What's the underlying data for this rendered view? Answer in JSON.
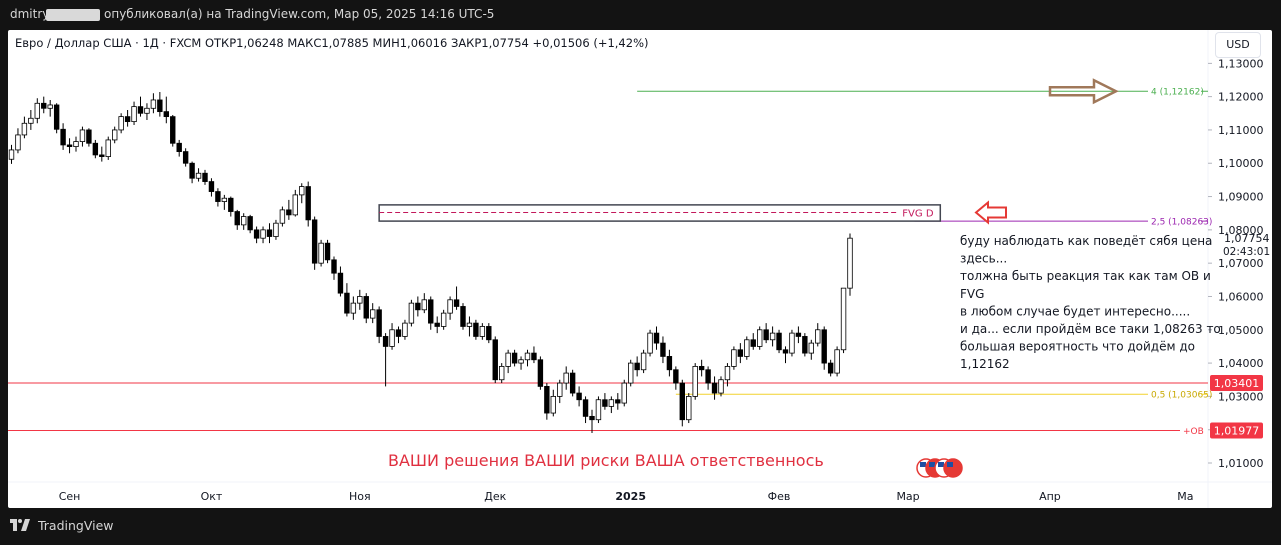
{
  "header": {
    "author": "dmitry",
    "published": "опубликовал(а) на TradingView.com, Мар 05, 2025 14:16 UTC-5"
  },
  "legend": {
    "text": "Евро / Доллар США · 1Д · FXCM   ОТКР1,06248   МАКС1,07885   МИН1,06016   ЗАКР1,07754   +0,01506 (+1,42%)"
  },
  "currency_button": "USD",
  "footer": {
    "brand": "TradingView"
  },
  "colors": {
    "up": "#ffffff",
    "down": "#000000",
    "candle_border": "#000000",
    "level_red": "#f23645",
    "level_green": "#4caf50",
    "level_purple": "#9c27b0",
    "fib_yellow": "#f2d22e",
    "arrow_brown": "#a0785a",
    "warning_text": "#e03040"
  },
  "chart_data": {
    "type": "candlestick",
    "symbol": "EURUSD",
    "timeframe": "1Д",
    "ylim": [
      1.0055,
      1.1325
    ],
    "y_ticks": [
      "1,13000",
      "1,12000",
      "1,11000",
      "1,10000",
      "1,09000",
      "1,08000",
      "1,07000",
      "1,06000",
      "1,05000",
      "1,04000",
      "1,03000",
      "1,02000",
      "1,01000"
    ],
    "x_ticks": [
      {
        "label": "Сен",
        "bar": 9
      },
      {
        "label": "Окт",
        "bar": 31
      },
      {
        "label": "Ноя",
        "bar": 54
      },
      {
        "label": "Дек",
        "bar": 75
      },
      {
        "label": "2025",
        "bar": 96
      },
      {
        "label": "Фев",
        "bar": 119
      },
      {
        "label": "Мар",
        "bar": 139
      },
      {
        "label": "Апр",
        "bar": 161
      },
      {
        "label": "Ма",
        "bar": 182
      }
    ],
    "price_labels": [
      {
        "text": "1,07754",
        "value": 1.07754
      },
      {
        "text": "02:43:01",
        "value": 1.07754
      }
    ],
    "levels": [
      {
        "name": "4 (1,12162)",
        "value": 1.12162,
        "color": "#4caf50",
        "from_bar": 97,
        "label": "4 (1,12162)"
      },
      {
        "name": "2,5 (1,08263)",
        "value": 1.08263,
        "color": "#9c27b0",
        "from_bar": 140,
        "label": "2,5 (1,08263)"
      },
      {
        "name": "0,5 (1,03065)",
        "value": 1.03065,
        "color": "#f2d22e",
        "from_bar": 103,
        "label": "0,5 (1,03065)"
      },
      {
        "name": "1,03401",
        "value": 1.03401,
        "color": "#f23645",
        "from_bar": 0,
        "tag": "1,03401"
      },
      {
        "name": "+OB",
        "value": 1.01977,
        "color": "#f23645",
        "from_bar": 0,
        "label": "+OB",
        "tag": "1,01977"
      }
    ],
    "fvg_box": {
      "from_bar": 57,
      "to_bar": 144,
      "top": 1.0875,
      "bottom": 1.08263,
      "mid": 1.0852,
      "label": "FVG D"
    },
    "annotations": [
      "буду наблюдать как поведёт сябя цена",
      "здесь...",
      "толжна быть реакция так как там ОВ и",
      "FVG",
      "в любом случае будет интересно.....",
      "и да... если пройдём все таки 1,08263 то",
      "большая вероятность что   дойдём до",
      "1,12162"
    ],
    "warning": "ВАШИ решения ВАШИ риски ВАША ответственнось",
    "candles": [
      [
        1.1012,
        1.1055,
        1.0998,
        1.104
      ],
      [
        1.104,
        1.1105,
        1.103,
        1.1085
      ],
      [
        1.1085,
        1.114,
        1.1075,
        1.112
      ],
      [
        1.112,
        1.116,
        1.11,
        1.1135
      ],
      [
        1.1135,
        1.1195,
        1.112,
        1.118
      ],
      [
        1.118,
        1.12,
        1.115,
        1.1165
      ],
      [
        1.1165,
        1.119,
        1.114,
        1.1175
      ],
      [
        1.1175,
        1.118,
        1.109,
        1.1102
      ],
      [
        1.1102,
        1.112,
        1.104,
        1.1055
      ],
      [
        1.1055,
        1.1075,
        1.103,
        1.105
      ],
      [
        1.105,
        1.108,
        1.1035,
        1.1065
      ],
      [
        1.1065,
        1.111,
        1.105,
        1.11
      ],
      [
        1.11,
        1.1105,
        1.105,
        1.106
      ],
      [
        1.106,
        1.107,
        1.1015,
        1.1025
      ],
      [
        1.1025,
        1.105,
        1.1005,
        1.102
      ],
      [
        1.102,
        1.108,
        1.101,
        1.107
      ],
      [
        1.107,
        1.111,
        1.106,
        1.11
      ],
      [
        1.11,
        1.115,
        1.109,
        1.114
      ],
      [
        1.114,
        1.116,
        1.111,
        1.1125
      ],
      [
        1.1125,
        1.1185,
        1.1115,
        1.117
      ],
      [
        1.117,
        1.12,
        1.114,
        1.115
      ],
      [
        1.115,
        1.118,
        1.113,
        1.1165
      ],
      [
        1.1165,
        1.121,
        1.115,
        1.119
      ],
      [
        1.119,
        1.1214,
        1.114,
        1.1155
      ],
      [
        1.1155,
        1.12,
        1.112,
        1.114
      ],
      [
        1.114,
        1.1145,
        1.105,
        1.106
      ],
      [
        1.106,
        1.107,
        1.102,
        1.1035
      ],
      [
        1.1035,
        1.1045,
        1.099,
        1.1
      ],
      [
        1.1,
        1.1005,
        1.094,
        1.0955
      ],
      [
        1.0955,
        1.0985,
        1.0945,
        1.097
      ],
      [
        1.097,
        1.098,
        1.0935,
        1.0945
      ],
      [
        1.0945,
        1.0955,
        1.09,
        1.0915
      ],
      [
        1.0915,
        1.0925,
        1.087,
        1.0885
      ],
      [
        1.0885,
        1.0905,
        1.086,
        1.0895
      ],
      [
        1.0895,
        1.09,
        1.084,
        1.0855
      ],
      [
        1.0855,
        1.086,
        1.08,
        1.0815
      ],
      [
        1.0815,
        1.085,
        1.08,
        1.084
      ],
      [
        1.084,
        1.0845,
        1.079,
        1.08
      ],
      [
        1.08,
        1.081,
        1.076,
        1.0775
      ],
      [
        1.0775,
        1.081,
        1.076,
        1.08
      ],
      [
        1.08,
        1.082,
        1.076,
        1.078
      ],
      [
        1.078,
        1.083,
        1.077,
        1.082
      ],
      [
        1.082,
        1.087,
        1.081,
        1.086
      ],
      [
        1.086,
        1.089,
        1.083,
        1.0845
      ],
      [
        1.0845,
        1.092,
        1.084,
        1.0905
      ],
      [
        1.0905,
        1.094,
        1.088,
        1.093
      ],
      [
        1.093,
        1.0945,
        1.081,
        1.083
      ],
      [
        1.083,
        1.084,
        1.068,
        1.07
      ],
      [
        1.07,
        1.077,
        1.069,
        1.076
      ],
      [
        1.076,
        1.077,
        1.07,
        1.071
      ],
      [
        1.071,
        1.072,
        1.065,
        1.067
      ],
      [
        1.067,
        1.069,
        1.06,
        1.061
      ],
      [
        1.061,
        1.064,
        1.054,
        1.055
      ],
      [
        1.055,
        1.06,
        1.053,
        1.058
      ],
      [
        1.058,
        1.062,
        1.056,
        1.06
      ],
      [
        1.06,
        1.061,
        1.052,
        1.0535
      ],
      [
        1.0535,
        1.058,
        1.052,
        1.056
      ],
      [
        1.056,
        1.057,
        1.046,
        1.048
      ],
      [
        1.048,
        1.049,
        1.033,
        1.045
      ],
      [
        1.045,
        1.052,
        1.044,
        1.05
      ],
      [
        1.05,
        1.051,
        1.046,
        1.048
      ],
      [
        1.048,
        1.053,
        1.047,
        1.052
      ],
      [
        1.052,
        1.059,
        1.051,
        1.058
      ],
      [
        1.058,
        1.06,
        1.054,
        1.056
      ],
      [
        1.056,
        1.061,
        1.055,
        1.059
      ],
      [
        1.059,
        1.06,
        1.05,
        1.052
      ],
      [
        1.052,
        1.054,
        1.049,
        1.051
      ],
      [
        1.051,
        1.056,
        1.05,
        1.055
      ],
      [
        1.055,
        1.06,
        1.053,
        1.059
      ],
      [
        1.059,
        1.063,
        1.056,
        1.057
      ],
      [
        1.057,
        1.058,
        1.05,
        1.051
      ],
      [
        1.051,
        1.054,
        1.048,
        1.052
      ],
      [
        1.052,
        1.053,
        1.047,
        1.048
      ],
      [
        1.048,
        1.052,
        1.047,
        1.051
      ],
      [
        1.051,
        1.052,
        1.046,
        1.047
      ],
      [
        1.047,
        1.048,
        1.034,
        1.035
      ],
      [
        1.035,
        1.04,
        1.034,
        1.039
      ],
      [
        1.039,
        1.044,
        1.037,
        1.043
      ],
      [
        1.043,
        1.044,
        1.039,
        1.04
      ],
      [
        1.04,
        1.042,
        1.038,
        1.041
      ],
      [
        1.041,
        1.044,
        1.039,
        1.043
      ],
      [
        1.043,
        1.045,
        1.04,
        1.041
      ],
      [
        1.041,
        1.042,
        1.032,
        1.033
      ],
      [
        1.033,
        1.034,
        1.023,
        1.025
      ],
      [
        1.025,
        1.032,
        1.024,
        1.03
      ],
      [
        1.03,
        1.035,
        1.028,
        1.034
      ],
      [
        1.034,
        1.039,
        1.032,
        1.037
      ],
      [
        1.037,
        1.038,
        1.03,
        1.031
      ],
      [
        1.031,
        1.033,
        1.027,
        1.029
      ],
      [
        1.029,
        1.03,
        1.022,
        1.024
      ],
      [
        1.024,
        1.026,
        1.019,
        1.023
      ],
      [
        1.023,
        1.03,
        1.022,
        1.029
      ],
      [
        1.029,
        1.031,
        1.026,
        1.027
      ],
      [
        1.027,
        1.03,
        1.025,
        1.029
      ],
      [
        1.029,
        1.031,
        1.026,
        1.028
      ],
      [
        1.028,
        1.035,
        1.027,
        1.034
      ],
      [
        1.034,
        1.041,
        1.033,
        1.04
      ],
      [
        1.04,
        1.042,
        1.036,
        1.038
      ],
      [
        1.038,
        1.044,
        1.037,
        1.043
      ],
      [
        1.043,
        1.05,
        1.042,
        1.049
      ],
      [
        1.049,
        1.051,
        1.044,
        1.046
      ],
      [
        1.046,
        1.048,
        1.04,
        1.042
      ],
      [
        1.042,
        1.044,
        1.036,
        1.038
      ],
      [
        1.038,
        1.039,
        1.032,
        1.034
      ],
      [
        1.034,
        1.035,
        1.021,
        1.023
      ],
      [
        1.023,
        1.031,
        1.022,
        1.03
      ],
      [
        1.03,
        1.04,
        1.029,
        1.039
      ],
      [
        1.039,
        1.041,
        1.036,
        1.038
      ],
      [
        1.038,
        1.039,
        1.032,
        1.034
      ],
      [
        1.034,
        1.036,
        1.029,
        1.031
      ],
      [
        1.031,
        1.036,
        1.03,
        1.035
      ],
      [
        1.035,
        1.04,
        1.033,
        1.039
      ],
      [
        1.039,
        1.045,
        1.038,
        1.044
      ],
      [
        1.044,
        1.046,
        1.04,
        1.042
      ],
      [
        1.042,
        1.048,
        1.041,
        1.047
      ],
      [
        1.047,
        1.049,
        1.044,
        1.045
      ],
      [
        1.045,
        1.051,
        1.044,
        1.05
      ],
      [
        1.05,
        1.052,
        1.046,
        1.047
      ],
      [
        1.047,
        1.051,
        1.045,
        1.049
      ],
      [
        1.049,
        1.05,
        1.043,
        1.044
      ],
      [
        1.044,
        1.045,
        1.04,
        1.043
      ],
      [
        1.043,
        1.05,
        1.042,
        1.049
      ],
      [
        1.049,
        1.051,
        1.046,
        1.048
      ],
      [
        1.048,
        1.049,
        1.042,
        1.043
      ],
      [
        1.043,
        1.047,
        1.041,
        1.046
      ],
      [
        1.046,
        1.052,
        1.045,
        1.05
      ],
      [
        1.05,
        1.051,
        1.038,
        1.04
      ],
      [
        1.04,
        1.041,
        1.036,
        1.037
      ],
      [
        1.037,
        1.045,
        1.036,
        1.044
      ],
      [
        1.044,
        1.0624,
        1.043,
        1.0625
      ],
      [
        1.0625,
        1.0789,
        1.0602,
        1.0775
      ]
    ]
  }
}
